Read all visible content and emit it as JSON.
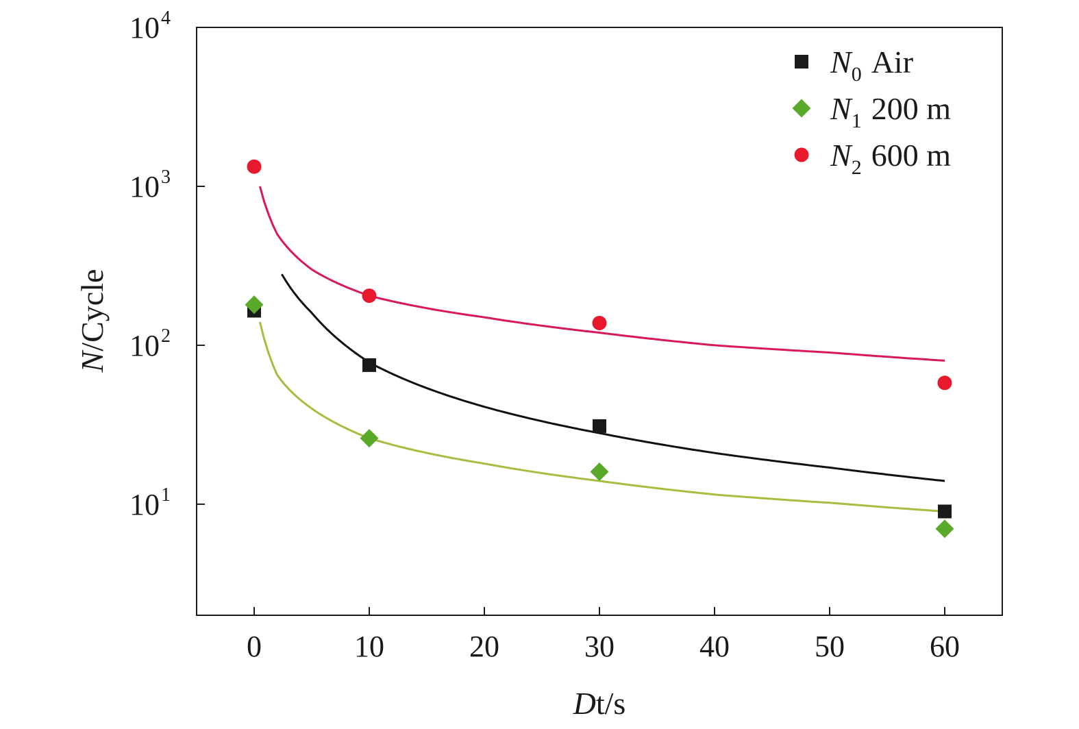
{
  "chart_data": {
    "type": "scatter",
    "xlabel": {
      "italic": "D",
      "rest": "t/s"
    },
    "ylabel": {
      "italic": "N",
      "rest": "/Cycle"
    },
    "xlim": [
      -5,
      65
    ],
    "ylim": [
      2,
      10000
    ],
    "yscale": "log",
    "x_ticks": [
      0,
      10,
      20,
      30,
      40,
      50,
      60
    ],
    "x_tick_labels": [
      "0",
      "10",
      "20",
      "30",
      "40",
      "50",
      "60"
    ],
    "y_ticks": [
      {
        "value": 10,
        "base": "10",
        "exp": "1"
      },
      {
        "value": 100,
        "base": "10",
        "exp": "2"
      },
      {
        "value": 1000,
        "base": "10",
        "exp": "3"
      },
      {
        "value": 10000,
        "base": "10",
        "exp": "4"
      }
    ],
    "grid": false,
    "legend_position": "top-right",
    "series": [
      {
        "key": "n0",
        "legend_main": "N",
        "legend_sub": "0",
        "legend_rest": "Air",
        "marker": "square",
        "color": "#1a1a1a",
        "x": [
          0,
          10,
          30,
          60
        ],
        "y": [
          165,
          75,
          31,
          9
        ],
        "fit_color": "#111111",
        "fit_range": [
          2.4,
          60
        ],
        "fit_x": [
          2.4,
          5,
          10,
          20,
          30,
          40,
          50,
          60
        ],
        "fit_y": [
          280,
          160,
          78,
          41,
          28,
          21,
          17,
          14
        ]
      },
      {
        "key": "n1",
        "legend_main": "N",
        "legend_sub": "1",
        "legend_rest": "200 m",
        "marker": "diamond",
        "color": "#5aaa2a",
        "x": [
          0,
          10,
          30,
          60
        ],
        "y": [
          180,
          26,
          16,
          7
        ],
        "fit_color": "#a6bd3f",
        "fit_range": [
          0.5,
          60
        ],
        "fit_x": [
          0.5,
          2,
          5,
          10,
          20,
          30,
          40,
          50,
          60
        ],
        "fit_y": [
          140,
          65,
          40,
          26,
          18,
          14,
          11.5,
          10.2,
          9
        ]
      },
      {
        "key": "n2",
        "legend_main": "N",
        "legend_sub": "2",
        "legend_rest": "600 m",
        "marker": "circle",
        "color": "#e8192c",
        "x": [
          0,
          10,
          30,
          60
        ],
        "y": [
          1330,
          205,
          138,
          58
        ],
        "fit_color": "#d8175e",
        "fit_range": [
          0.5,
          60
        ],
        "fit_x": [
          0.5,
          2,
          5,
          10,
          20,
          30,
          40,
          50,
          60
        ],
        "fit_y": [
          1000,
          500,
          300,
          205,
          150,
          120,
          100,
          90,
          80
        ]
      }
    ]
  }
}
